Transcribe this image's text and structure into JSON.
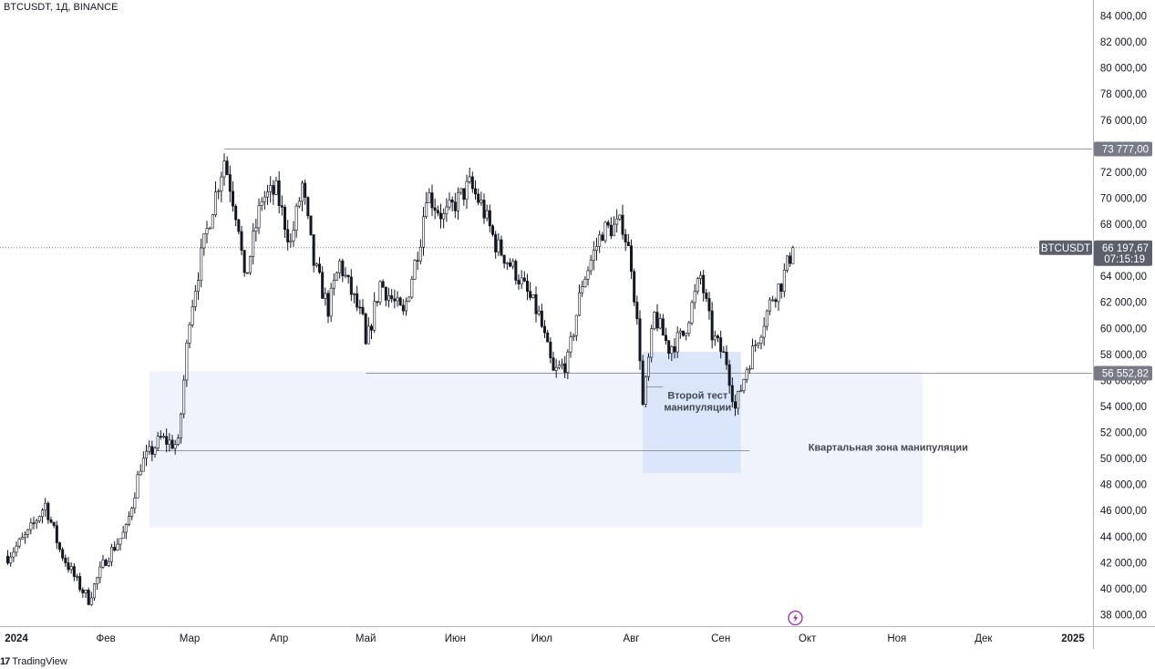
{
  "header": {
    "symbol_title": "BTCUSDT, 1Д, BINANCE"
  },
  "branding": {
    "logo_mark": "17",
    "logo_text": "TradingView"
  },
  "chart_data": {
    "type": "candlestick",
    "symbol": "BTCUSDT",
    "interval": "1Д",
    "exchange": "BINANCE",
    "ylim": [
      37000,
      85000
    ],
    "y_ticks": [
      38000,
      40000,
      42000,
      44000,
      46000,
      48000,
      50000,
      52000,
      54000,
      56000,
      58000,
      60000,
      62000,
      64000,
      66000,
      68000,
      70000,
      72000,
      74000,
      76000,
      78000,
      80000,
      82000,
      84000
    ],
    "y_tick_labels": [
      "38 000,00",
      "40 000,00",
      "42 000,00",
      "44 000,00",
      "46 000,00",
      "48 000,00",
      "50 000,00",
      "52 000,00",
      "54 000,00",
      "56 000,00",
      "58 000,00",
      "60 000,00",
      "62 000,00",
      "64 000,00",
      "66 000,00",
      "68 000,00",
      "70 000,00",
      "72 000,00",
      "74 000,00",
      "76 000,00",
      "78 000,00",
      "80 000,00",
      "82 000,00",
      "84 000,00"
    ],
    "x_tick_labels": [
      {
        "label": "2024",
        "date": "2024-01-01",
        "bold": true
      },
      {
        "label": "Фев",
        "date": "2024-02-01",
        "bold": false
      },
      {
        "label": "Мар",
        "date": "2024-03-01",
        "bold": false
      },
      {
        "label": "Апр",
        "date": "2024-04-01",
        "bold": false
      },
      {
        "label": "Май",
        "date": "2024-05-01",
        "bold": false
      },
      {
        "label": "Июн",
        "date": "2024-06-01",
        "bold": false
      },
      {
        "label": "Июл",
        "date": "2024-07-01",
        "bold": false
      },
      {
        "label": "Авг",
        "date": "2024-08-01",
        "bold": false
      },
      {
        "label": "Сен",
        "date": "2024-09-01",
        "bold": false
      },
      {
        "label": "Окт",
        "date": "2024-10-01",
        "bold": false
      },
      {
        "label": "Ноя",
        "date": "2024-11-01",
        "bold": false
      },
      {
        "label": "Дек",
        "date": "2024-12-01",
        "bold": false
      },
      {
        "label": "2025",
        "date": "2025-01-01",
        "bold": true
      }
    ],
    "price_path": [
      [
        "2023-12-29",
        42500
      ],
      [
        "2024-01-05",
        44200
      ],
      [
        "2024-01-11",
        46500
      ],
      [
        "2024-01-16",
        43000
      ],
      [
        "2024-01-22",
        40500
      ],
      [
        "2024-01-26",
        39200
      ],
      [
        "2024-02-01",
        42300
      ],
      [
        "2024-02-08",
        44500
      ],
      [
        "2024-02-13",
        49500
      ],
      [
        "2024-02-20",
        51500
      ],
      [
        "2024-02-26",
        51000
      ],
      [
        "2024-03-01",
        61000
      ],
      [
        "2024-03-05",
        65500
      ],
      [
        "2024-03-08",
        68500
      ],
      [
        "2024-03-13",
        73000
      ],
      [
        "2024-03-18",
        68000
      ],
      [
        "2024-03-20",
        63500
      ],
      [
        "2024-03-26",
        70000
      ],
      [
        "2024-03-31",
        70500
      ],
      [
        "2024-04-05",
        66500
      ],
      [
        "2024-04-09",
        71000
      ],
      [
        "2024-04-13",
        65000
      ],
      [
        "2024-04-18",
        61500
      ],
      [
        "2024-04-22",
        65000
      ],
      [
        "2024-04-30",
        60500
      ],
      [
        "2024-05-01",
        58500
      ],
      [
        "2024-05-06",
        63500
      ],
      [
        "2024-05-14",
        61000
      ],
      [
        "2024-05-20",
        67000
      ],
      [
        "2024-05-22",
        70500
      ],
      [
        "2024-05-28",
        68500
      ],
      [
        "2024-06-06",
        71000
      ],
      [
        "2024-06-10",
        69500
      ],
      [
        "2024-06-15",
        66500
      ],
      [
        "2024-06-22",
        64300
      ],
      [
        "2024-06-30",
        61000
      ],
      [
        "2024-07-05",
        56500
      ],
      [
        "2024-07-10",
        57500
      ],
      [
        "2024-07-15",
        63500
      ],
      [
        "2024-07-22",
        67500
      ],
      [
        "2024-07-29",
        68000
      ],
      [
        "2024-08-01",
        65000
      ],
      [
        "2024-08-04",
        58000
      ],
      [
        "2024-08-05",
        54000
      ],
      [
        "2024-08-09",
        61000
      ],
      [
        "2024-08-14",
        58500
      ],
      [
        "2024-08-19",
        59500
      ],
      [
        "2024-08-25",
        64000
      ],
      [
        "2024-08-29",
        59500
      ],
      [
        "2024-09-03",
        57500
      ],
      [
        "2024-09-06",
        53800
      ],
      [
        "2024-09-10",
        57000
      ],
      [
        "2024-09-15",
        60000
      ],
      [
        "2024-09-19",
        62500
      ],
      [
        "2024-09-22",
        63500
      ],
      [
        "2024-09-26",
        66197.67
      ]
    ],
    "levels": [
      {
        "price": 73777,
        "label": "73 777,00",
        "from_date": "2024-03-13"
      },
      {
        "price": 56552.82,
        "label": "56 552,82",
        "from_date": "2024-05-01"
      }
    ],
    "last_price": {
      "price": 66197.67,
      "symbol_label": "BTCUSDT",
      "price_label": "66 197,67",
      "countdown": "07:15:19"
    },
    "zones": [
      {
        "name": "Квартальная зона манипуляции",
        "from_date": "2024-02-16",
        "to_date": "2024-11-10",
        "top": 56700,
        "bottom": 44700,
        "mid": 50600
      },
      {
        "name": "Второй тест манипуляции",
        "from_date": "2024-08-05",
        "to_date": "2024-09-08",
        "top": 58200,
        "bottom": 48900,
        "mid": 55500
      }
    ],
    "annotations": [
      {
        "text_lines": [
          "Второй тест",
          "манипуляции"
        ],
        "date": "2024-08-24",
        "price": 54600
      },
      {
        "text_lines": [
          "Квартальная зона манипуляции"
        ],
        "date": "2024-10-29",
        "price": 50600
      }
    ],
    "colors": {
      "candle_up": "#ffffff",
      "candle_down": "#131722",
      "wick": "#131722",
      "zone_large": "#f0f3fb",
      "zone_small": "#dbe6fb",
      "level_line": "#9598a1",
      "badge_level": "#787b86",
      "badge_last": "#5d606b",
      "event_icon": "#9c27b0"
    },
    "icons": {
      "event_icon": "lightning-icon"
    },
    "grid": false
  }
}
